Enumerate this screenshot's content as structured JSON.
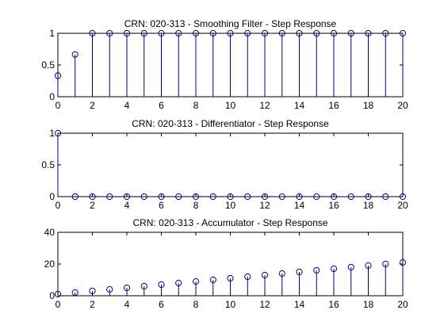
{
  "colors": {
    "series": "#00007f",
    "axes": "#000000",
    "background": "#ffffff"
  },
  "chart_data": [
    {
      "type": "stem",
      "title": "CRN: 020-313 - Smoothing Filter - Step Response",
      "xlabel": "",
      "ylabel": "",
      "x": [
        0,
        1,
        2,
        3,
        4,
        5,
        6,
        7,
        8,
        9,
        10,
        11,
        12,
        13,
        14,
        15,
        16,
        17,
        18,
        19,
        20
      ],
      "values": [
        0.3333,
        0.6667,
        1,
        1,
        1,
        1,
        1,
        1,
        1,
        1,
        1,
        1,
        1,
        1,
        1,
        1,
        1,
        1,
        1,
        1,
        1
      ],
      "xlim": [
        0,
        20
      ],
      "ylim": [
        0,
        1
      ],
      "xticks": [
        0,
        2,
        4,
        6,
        8,
        10,
        12,
        14,
        16,
        18,
        20
      ],
      "yticks": [
        0,
        0.5,
        1
      ],
      "grid": false,
      "legend": "none"
    },
    {
      "type": "stem",
      "title": "CRN: 020-313 - Differentiator - Step Response",
      "xlabel": "",
      "ylabel": "",
      "x": [
        0,
        1,
        2,
        3,
        4,
        5,
        6,
        7,
        8,
        9,
        10,
        11,
        12,
        13,
        14,
        15,
        16,
        17,
        18,
        19,
        20
      ],
      "values": [
        1,
        0,
        0,
        0,
        0,
        0,
        0,
        0,
        0,
        0,
        0,
        0,
        0,
        0,
        0,
        0,
        0,
        0,
        0,
        0,
        0
      ],
      "xlim": [
        0,
        20
      ],
      "ylim": [
        0,
        1
      ],
      "xticks": [
        0,
        2,
        4,
        6,
        8,
        10,
        12,
        14,
        16,
        18,
        20
      ],
      "yticks": [
        0,
        0.5,
        1
      ],
      "grid": false,
      "legend": "none"
    },
    {
      "type": "stem",
      "title": "CRN: 020-313 - Accumulator - Step Response",
      "xlabel": "",
      "ylabel": "",
      "x": [
        0,
        1,
        2,
        3,
        4,
        5,
        6,
        7,
        8,
        9,
        10,
        11,
        12,
        13,
        14,
        15,
        16,
        17,
        18,
        19,
        20
      ],
      "values": [
        1,
        2,
        3,
        4,
        5,
        6,
        7,
        8,
        9,
        10,
        11,
        12,
        13,
        14,
        15,
        16,
        17,
        18,
        19,
        20,
        21
      ],
      "xlim": [
        0,
        20
      ],
      "ylim": [
        0,
        40
      ],
      "xticks": [
        0,
        2,
        4,
        6,
        8,
        10,
        12,
        14,
        16,
        18,
        20
      ],
      "yticks": [
        0,
        20,
        40
      ],
      "grid": false,
      "legend": "none"
    }
  ]
}
